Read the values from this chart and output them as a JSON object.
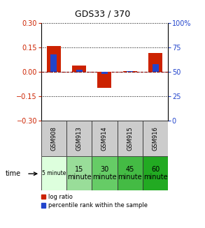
{
  "title": "GDS33 / 370",
  "samples": [
    "GSM908",
    "GSM913",
    "GSM914",
    "GSM915",
    "GSM916"
  ],
  "time_labels_line1": [
    "5 minute",
    "15",
    "30",
    "45",
    "60"
  ],
  "time_labels_line2": [
    "",
    "minute",
    "minute",
    "minute",
    "minute"
  ],
  "log_ratio": [
    0.16,
    0.04,
    -0.1,
    0.005,
    0.115
  ],
  "percentile_rank": [
    68,
    52,
    48,
    51,
    58
  ],
  "ylim_left": [
    -0.3,
    0.3
  ],
  "ylim_right": [
    0,
    100
  ],
  "yticks_left": [
    -0.3,
    -0.15,
    0.0,
    0.15,
    0.3
  ],
  "yticks_right": [
    0,
    25,
    50,
    75,
    100
  ],
  "red_color": "#cc2200",
  "blue_color": "#2244cc",
  "zero_line_color": "#cc0000",
  "sample_bg_color": "#cccccc",
  "time_colors": [
    "#ddffdd",
    "#99dd99",
    "#66cc66",
    "#44bb44",
    "#22aa22"
  ],
  "legend_red": "log ratio",
  "legend_blue": "percentile rank within the sample"
}
